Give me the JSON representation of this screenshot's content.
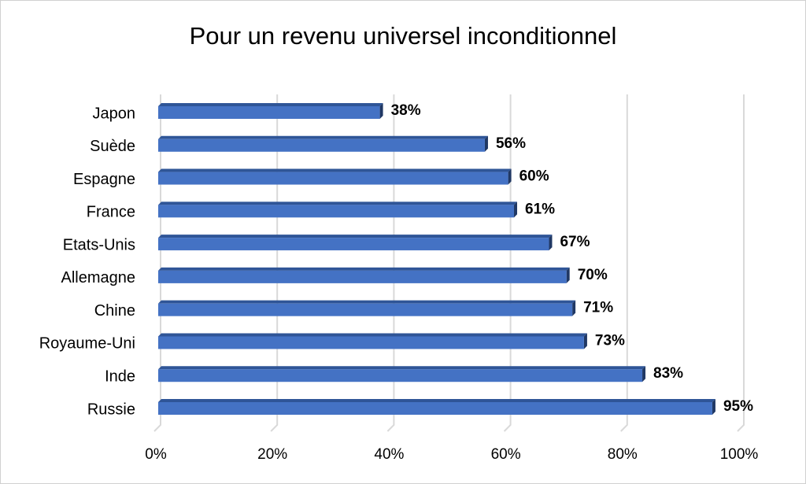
{
  "chart_data": {
    "type": "bar",
    "orientation": "horizontal",
    "title": "Pour un revenu universel inconditionnel",
    "categories": [
      "Japon",
      "Suède",
      "Espagne",
      "France",
      "Etats-Unis",
      "Allemagne",
      "Chine",
      "Royaume-Uni",
      "Inde",
      "Russie"
    ],
    "values": [
      38,
      56,
      60,
      61,
      67,
      70,
      71,
      73,
      83,
      95
    ],
    "value_labels": [
      "38%",
      "56%",
      "60%",
      "61%",
      "67%",
      "70%",
      "71%",
      "73%",
      "83%",
      "95%"
    ],
    "color": "#4472c4",
    "xlim": [
      0,
      100
    ],
    "xticks": [
      {
        "value": 0,
        "label": "0%"
      },
      {
        "value": 20,
        "label": "20%"
      },
      {
        "value": 40,
        "label": "40%"
      },
      {
        "value": 60,
        "label": "60%"
      },
      {
        "value": 80,
        "label": "80%"
      },
      {
        "value": 100,
        "label": "100%"
      }
    ],
    "grid": true
  }
}
